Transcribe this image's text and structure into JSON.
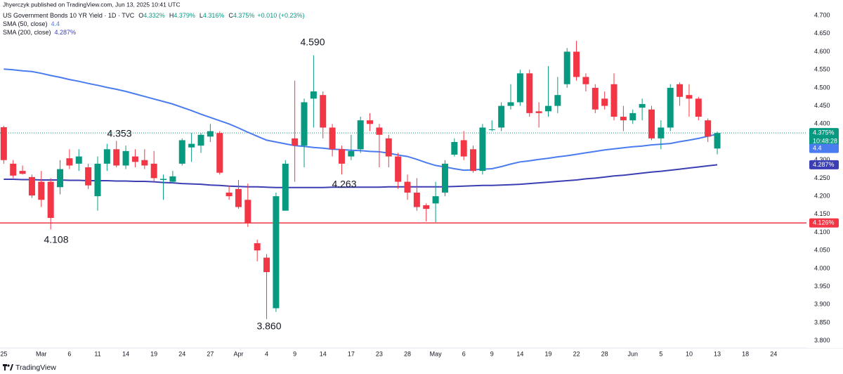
{
  "header": {
    "publisher": "Jhyerczyk published on TradingView.com, Jun 13, 2025 10:41 UTC"
  },
  "chart_data": {
    "type": "candlestick",
    "title": "US Government Bonds 10 YR Yield · 1D · TVC",
    "quote": {
      "labels": [
        "O",
        "H",
        "L",
        "C"
      ],
      "values": [
        4.332,
        4.379,
        4.316,
        4.375
      ],
      "value_labels": [
        "4.332%",
        "4.379%",
        "4.316%",
        "4.375%"
      ],
      "change": "+0.010 (+0.23%)"
    },
    "up_color": "#089981",
    "down_color": "#f23645",
    "open": [
      4.391,
      4.29,
      4.27,
      4.253,
      4.24,
      4.24,
      4.225,
      4.305,
      4.29,
      4.28,
      4.2,
      4.29,
      4.33,
      4.285,
      4.31,
      4.3,
      4.29,
      4.245,
      4.24,
      4.29,
      4.335,
      4.34,
      4.365,
      4.375,
      4.21,
      4.22,
      4.19,
      4.07,
      4.03,
      3.89,
      4.16,
      4.36,
      4.34,
      4.47,
      4.48,
      4.39,
      4.33,
      4.31,
      4.33,
      4.41,
      4.39,
      4.36,
      4.31,
      4.24,
      4.21,
      4.175,
      4.18,
      4.21,
      4.315,
      4.355,
      4.33,
      4.27,
      4.385,
      4.39,
      4.45,
      4.46,
      4.54,
      4.435,
      4.435,
      4.45,
      4.51,
      4.6,
      4.53,
      4.5,
      4.47,
      4.51,
      4.42,
      4.41,
      4.445,
      4.44,
      4.36,
      4.39,
      4.51,
      4.48,
      4.47,
      4.41,
      4.332
    ],
    "high": [
      4.395,
      4.3,
      4.285,
      4.26,
      4.27,
      4.25,
      4.3,
      4.33,
      4.33,
      4.29,
      4.31,
      4.345,
      4.353,
      4.34,
      4.33,
      4.33,
      4.325,
      4.26,
      4.27,
      4.36,
      4.375,
      4.375,
      4.4,
      4.38,
      4.23,
      4.245,
      4.235,
      4.08,
      4.04,
      4.21,
      4.3,
      4.52,
      4.47,
      4.59,
      4.49,
      4.4,
      4.34,
      4.37,
      4.42,
      4.43,
      4.4,
      4.37,
      4.32,
      4.26,
      4.25,
      4.18,
      4.24,
      4.3,
      4.36,
      4.38,
      4.34,
      4.4,
      4.41,
      4.46,
      4.51,
      4.55,
      4.55,
      4.46,
      4.56,
      4.53,
      4.61,
      4.63,
      4.54,
      4.51,
      4.49,
      4.54,
      4.45,
      4.44,
      4.47,
      4.45,
      4.41,
      4.51,
      4.515,
      4.51,
      4.475,
      4.415,
      4.379
    ],
    "low": [
      4.29,
      4.25,
      4.26,
      4.195,
      4.17,
      4.108,
      4.205,
      4.275,
      4.27,
      4.22,
      4.16,
      4.27,
      4.28,
      4.275,
      4.28,
      4.275,
      4.24,
      4.19,
      4.235,
      4.285,
      4.295,
      4.32,
      4.35,
      4.26,
      4.19,
      4.165,
      4.115,
      4.02,
      3.86,
      3.88,
      4.16,
      4.24,
      4.28,
      4.39,
      4.36,
      4.31,
      4.26,
      4.3,
      4.32,
      4.38,
      4.28,
      4.28,
      4.22,
      4.19,
      4.16,
      4.13,
      4.128,
      4.2,
      4.31,
      4.3,
      4.265,
      4.26,
      4.38,
      4.38,
      4.44,
      4.45,
      4.42,
      4.39,
      4.42,
      4.43,
      4.5,
      4.52,
      4.49,
      4.43,
      4.44,
      4.41,
      4.38,
      4.4,
      4.41,
      4.355,
      4.33,
      4.38,
      4.45,
      4.42,
      4.41,
      4.35,
      4.316
    ],
    "close": [
      4.3,
      4.257,
      4.262,
      4.202,
      4.19,
      4.14,
      4.275,
      4.285,
      4.31,
      4.23,
      4.29,
      4.33,
      4.285,
      4.325,
      4.295,
      4.285,
      4.25,
      4.248,
      4.255,
      4.355,
      4.345,
      4.37,
      4.38,
      4.265,
      4.2,
      4.17,
      4.125,
      4.05,
      3.99,
      4.2,
      4.29,
      4.34,
      4.46,
      4.49,
      4.39,
      4.33,
      4.29,
      4.325,
      4.41,
      4.4,
      4.37,
      4.31,
      4.24,
      4.21,
      4.17,
      4.165,
      4.2,
      4.29,
      4.35,
      4.31,
      4.27,
      4.39,
      4.385,
      4.45,
      4.46,
      4.54,
      4.43,
      4.43,
      4.45,
      4.48,
      4.6,
      4.53,
      4.51,
      4.44,
      4.45,
      4.42,
      4.41,
      4.43,
      4.455,
      4.36,
      4.39,
      4.5,
      4.475,
      4.47,
      4.42,
      4.365,
      4.375
    ],
    "series": [
      {
        "name": "SMA (50, close)",
        "color": "#4a7cf0",
        "last_value_label": "4.4",
        "values": [
          4.552,
          4.55,
          4.547,
          4.545,
          4.54,
          4.534,
          4.529,
          4.523,
          4.518,
          4.512,
          4.507,
          4.501,
          4.496,
          4.49,
          4.483,
          4.476,
          4.469,
          4.462,
          4.455,
          4.446,
          4.437,
          4.427,
          4.418,
          4.409,
          4.4,
          4.389,
          4.377,
          4.366,
          4.355,
          4.35,
          4.345,
          4.34,
          4.338,
          4.335,
          4.333,
          4.33,
          4.329,
          4.327,
          4.326,
          4.324,
          4.323,
          4.319,
          4.314,
          4.31,
          4.302,
          4.293,
          4.285,
          4.281,
          4.276,
          4.272,
          4.273,
          4.275,
          4.276,
          4.282,
          4.289,
          4.295,
          4.298,
          4.302,
          4.305,
          4.309,
          4.312,
          4.316,
          4.32,
          4.324,
          4.328,
          4.331,
          4.334,
          4.337,
          4.339,
          4.342,
          4.344,
          4.346,
          4.351,
          4.355,
          4.36,
          4.366,
          4.372
        ]
      },
      {
        "name": "SMA (200, close)",
        "color": "#3b3fb3",
        "last_value_label": "4.287%",
        "values": [
          4.247,
          4.247,
          4.246,
          4.246,
          4.245,
          4.245,
          4.245,
          4.244,
          4.244,
          4.243,
          4.243,
          4.243,
          4.242,
          4.242,
          4.241,
          4.241,
          4.24,
          4.238,
          4.237,
          4.235,
          4.234,
          4.233,
          4.231,
          4.23,
          4.228,
          4.227,
          4.226,
          4.226,
          4.225,
          4.224,
          4.224,
          4.224,
          4.224,
          4.224,
          4.224,
          4.225,
          4.225,
          4.225,
          4.225,
          4.225,
          4.225,
          4.226,
          4.226,
          4.226,
          4.226,
          4.226,
          4.226,
          4.226,
          4.227,
          4.228,
          4.229,
          4.23,
          4.23,
          4.231,
          4.232,
          4.233,
          4.235,
          4.237,
          4.239,
          4.241,
          4.243,
          4.245,
          4.248,
          4.25,
          4.253,
          4.256,
          4.258,
          4.261,
          4.264,
          4.267,
          4.269,
          4.272,
          4.275,
          4.278,
          4.281,
          4.284,
          4.287
        ]
      }
    ],
    "hlines": [
      {
        "value": 4.126,
        "label": "4.126%",
        "color": "#f23645"
      }
    ],
    "last_price": {
      "value": 4.375,
      "label": "4.375%",
      "countdown": "10:48:28"
    },
    "annotations": [
      {
        "value": 4.59,
        "label": "4.590"
      },
      {
        "value": 4.353,
        "label": "4.353"
      },
      {
        "value": 4.108,
        "label": "4.108"
      },
      {
        "value": 3.86,
        "label": "3.860"
      },
      {
        "value": 4.263,
        "label": "4.263"
      }
    ],
    "xlim": [
      -0.4,
      85.5
    ],
    "xticks": [
      {
        "value": 0,
        "label": "25"
      },
      {
        "value": 4,
        "label": "Mar"
      },
      {
        "value": 7,
        "label": "6"
      },
      {
        "value": 10,
        "label": "11"
      },
      {
        "value": 13,
        "label": "14"
      },
      {
        "value": 16,
        "label": "19"
      },
      {
        "value": 19,
        "label": "24"
      },
      {
        "value": 22,
        "label": "27"
      },
      {
        "value": 25,
        "label": "Apr"
      },
      {
        "value": 28,
        "label": "4"
      },
      {
        "value": 31,
        "label": "9"
      },
      {
        "value": 34,
        "label": "14"
      },
      {
        "value": 37,
        "label": "17"
      },
      {
        "value": 40,
        "label": "23"
      },
      {
        "value": 43,
        "label": "28"
      },
      {
        "value": 46,
        "label": "May"
      },
      {
        "value": 49,
        "label": "6"
      },
      {
        "value": 52,
        "label": "9"
      },
      {
        "value": 55,
        "label": "14"
      },
      {
        "value": 58,
        "label": "19"
      },
      {
        "value": 61,
        "label": "22"
      },
      {
        "value": 64,
        "label": "28"
      },
      {
        "value": 67,
        "label": "Jun"
      },
      {
        "value": 70,
        "label": "5"
      },
      {
        "value": 73,
        "label": "10"
      },
      {
        "value": 76,
        "label": "13"
      },
      {
        "value": 79,
        "label": "18"
      },
      {
        "value": 82,
        "label": "24"
      }
    ],
    "ylim": [
      3.78,
      4.743
    ],
    "yticks": [
      {
        "value": 3.8,
        "label": "3.800"
      },
      {
        "value": 3.85,
        "label": "3.850"
      },
      {
        "value": 3.9,
        "label": "3.900"
      },
      {
        "value": 3.95,
        "label": "3.950"
      },
      {
        "value": 4.0,
        "label": "4.000"
      },
      {
        "value": 4.05,
        "label": "4.050"
      },
      {
        "value": 4.1,
        "label": "4.100"
      },
      {
        "value": 4.15,
        "label": "4.150"
      },
      {
        "value": 4.2,
        "label": "4.200"
      },
      {
        "value": 4.25,
        "label": "4.250"
      },
      {
        "value": 4.3,
        "label": "4.300"
      },
      {
        "value": 4.35,
        "label": "4.350"
      },
      {
        "value": 4.4,
        "label": "4.400"
      },
      {
        "value": 4.45,
        "label": "4.450"
      },
      {
        "value": 4.5,
        "label": "4.500"
      },
      {
        "value": 4.55,
        "label": "4.550"
      },
      {
        "value": 4.6,
        "label": "4.600"
      },
      {
        "value": 4.65,
        "label": "4.650"
      },
      {
        "value": 4.7,
        "label": "4.700"
      }
    ],
    "grid": false
  },
  "footer": {
    "brand": "TradingView"
  }
}
